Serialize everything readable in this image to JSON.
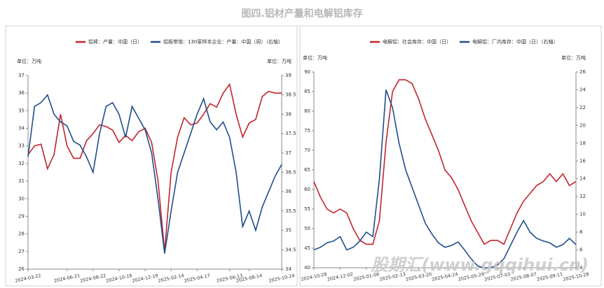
{
  "title": "图四.铝材产量和电解铝库存",
  "watermark": "股期汇(www.gqqihui.cn)",
  "chart_data": [
    {
      "type": "line",
      "y_label": "单位：万吨",
      "y2_label": "单位：万吨",
      "categories": [
        "2024-03-22",
        null,
        null,
        null,
        null,
        null,
        "2024-06-21",
        null,
        null,
        null,
        "2024-08-22",
        null,
        null,
        null,
        "2024-10-18",
        null,
        null,
        null,
        "2024-12-19",
        null,
        null,
        null,
        "2025-02-14",
        null,
        null,
        null,
        "2025-04-17",
        null,
        null,
        null,
        null,
        "2025-06-13",
        null,
        null,
        "2025-08-14",
        null,
        null,
        null,
        null,
        "2025-10-24"
      ],
      "series": [
        {
          "name": "铝棒：产量：中国（日）",
          "color": "#c0252e",
          "axis": "y",
          "values": [
            32.5,
            33.0,
            33.1,
            31.7,
            32.5,
            34.8,
            33.0,
            32.3,
            32.3,
            33.3,
            33.7,
            34.2,
            34.1,
            33.9,
            33.2,
            33.6,
            33.3,
            33.8,
            34.0,
            33.2,
            31.0,
            27.0,
            31.5,
            33.5,
            34.6,
            34.2,
            34.3,
            34.8,
            35.4,
            35.2,
            36.0,
            36.5,
            34.8,
            33.5,
            34.3,
            34.5,
            35.8,
            36.1,
            36.0,
            36.0
          ]
        },
        {
          "name": "铝板带箔：130家样本企业：产量：中国（周）（右轴）",
          "color": "#1f4e8c",
          "axis": "y2",
          "values": [
            36.9,
            38.2,
            38.3,
            38.5,
            38.0,
            37.8,
            37.7,
            37.3,
            37.2,
            36.9,
            36.5,
            37.5,
            38.2,
            38.3,
            38.0,
            37.4,
            38.2,
            37.9,
            37.6,
            37.0,
            35.8,
            34.4,
            35.5,
            36.5,
            37.0,
            37.5,
            38.0,
            38.4,
            37.8,
            37.6,
            37.8,
            37.4,
            36.5,
            35.1,
            35.5,
            35.0,
            35.6,
            36.0,
            36.4,
            36.7
          ]
        }
      ],
      "ylim": [
        26,
        37
      ],
      "yticks": [
        26,
        27,
        28,
        29,
        30,
        31,
        32,
        33,
        34,
        35,
        36,
        37
      ],
      "y2lim": [
        34,
        39
      ],
      "y2ticks": [
        34,
        34.5,
        35,
        35.5,
        36,
        36.5,
        37,
        37.5,
        38,
        38.5,
        39
      ],
      "grid": false
    },
    {
      "type": "line",
      "y_label": "单位：万吨",
      "y2_label": "单位：万吨",
      "categories": [
        "2024-10-28",
        null,
        null,
        null,
        "2024-12-02",
        null,
        null,
        null,
        "2025-01-06",
        null,
        null,
        null,
        "2025-02-13",
        null,
        null,
        null,
        "2025-03-20",
        null,
        null,
        null,
        "2025-04-24",
        null,
        null,
        null,
        "2025-05-29",
        null,
        null,
        null,
        "2025-07-03",
        null,
        null,
        null,
        "2025-08-07",
        null,
        null,
        null,
        "2025-09-11",
        null,
        null,
        null,
        "2025-10-28"
      ],
      "series": [
        {
          "name": "电解铝：社会库存：中国（日）",
          "color": "#c0252e",
          "axis": "y",
          "values": [
            62,
            58,
            55,
            54,
            55,
            54,
            50,
            47,
            46,
            46,
            52,
            72,
            85,
            88,
            88,
            87,
            83,
            78,
            74,
            70,
            65,
            63,
            60,
            56,
            52,
            49,
            46,
            47,
            47,
            46,
            50,
            54,
            57,
            59,
            61,
            62,
            64,
            62,
            64,
            61,
            62
          ]
        },
        {
          "name": "电解铝：厂内库存：中国（日）（右轴）",
          "color": "#1f4e8c",
          "axis": "y2",
          "values": [
            6.0,
            6.3,
            6.8,
            7.0,
            7.5,
            6.0,
            6.3,
            7.0,
            8.0,
            7.5,
            14,
            24,
            22,
            18,
            15,
            13,
            11,
            9,
            7.8,
            6.8,
            6.3,
            6.5,
            6.9,
            6.0,
            5.0,
            4.2,
            4.0,
            4.0,
            4.3,
            5.0,
            6.5,
            8.0,
            9.3,
            8.0,
            7.3,
            7.0,
            6.8,
            6.3,
            6.6,
            7.3,
            6.6
          ]
        }
      ],
      "ylim": [
        40,
        90
      ],
      "yticks": [
        40,
        45,
        50,
        55,
        60,
        65,
        70,
        75,
        80,
        85,
        90
      ],
      "y2lim": [
        4,
        26
      ],
      "y2ticks": [
        4,
        6,
        8,
        10,
        12,
        14,
        16,
        18,
        20,
        22,
        24,
        26
      ],
      "grid": false
    }
  ]
}
